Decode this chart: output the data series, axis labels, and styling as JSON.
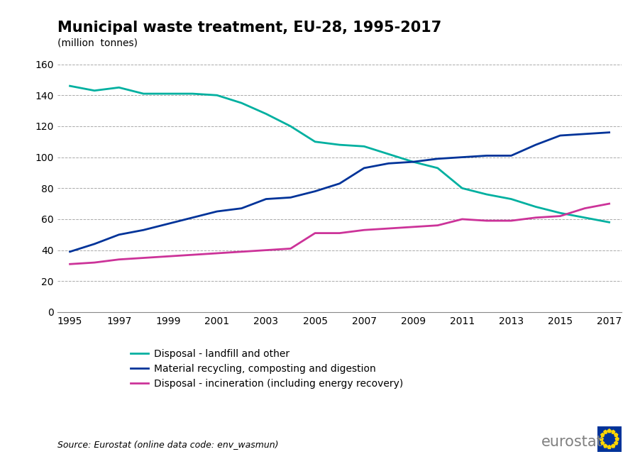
{
  "title": "Municipal waste treatment, EU-28, 1995-2017",
  "subtitle": "(million  tonnes)",
  "source_text": "Source: Eurostat (online data code: env_wasmun)",
  "years": [
    1995,
    1996,
    1997,
    1998,
    1999,
    2000,
    2001,
    2002,
    2003,
    2004,
    2005,
    2006,
    2007,
    2008,
    2009,
    2010,
    2011,
    2012,
    2013,
    2014,
    2015,
    2016,
    2017
  ],
  "landfill": [
    146,
    143,
    145,
    141,
    141,
    141,
    140,
    135,
    128,
    120,
    110,
    108,
    107,
    102,
    97,
    93,
    80,
    76,
    73,
    68,
    64,
    61,
    58
  ],
  "recycling": [
    39,
    44,
    50,
    53,
    57,
    61,
    65,
    67,
    73,
    74,
    78,
    83,
    93,
    96,
    97,
    99,
    100,
    101,
    101,
    108,
    114,
    115,
    116
  ],
  "incineration": [
    31,
    32,
    34,
    35,
    36,
    37,
    38,
    39,
    40,
    41,
    51,
    51,
    53,
    54,
    55,
    56,
    60,
    59,
    59,
    61,
    62,
    67,
    70
  ],
  "landfill_color": "#00B0A0",
  "recycling_color": "#003399",
  "incineration_color": "#CC3399",
  "ylim": [
    0,
    160
  ],
  "yticks": [
    0,
    20,
    40,
    60,
    80,
    100,
    120,
    140,
    160
  ],
  "xticks": [
    1995,
    1997,
    1999,
    2001,
    2003,
    2005,
    2007,
    2009,
    2011,
    2013,
    2015,
    2017
  ],
  "legend_labels": [
    "Disposal - landfill and other",
    "Material recycling, composting and digestion",
    "Disposal - incineration (including energy recovery)"
  ],
  "background_color": "#ffffff",
  "grid_color": "#aaaaaa",
  "title_fontsize": 15,
  "subtitle_fontsize": 10,
  "tick_fontsize": 10,
  "legend_fontsize": 10,
  "source_fontsize": 9,
  "eurostat_fontsize": 15,
  "linewidth": 2.0,
  "xlim_left": 1994.5,
  "xlim_right": 2017.5
}
